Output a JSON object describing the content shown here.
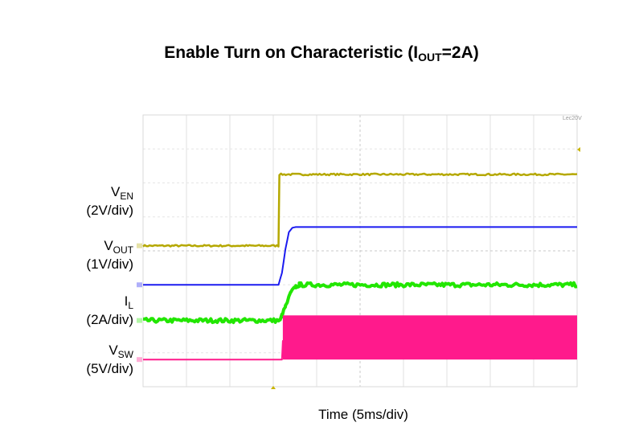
{
  "title": {
    "main": "Enable Turn on Characteristic (I",
    "sub": "OUT",
    "end": "=2A)"
  },
  "xlabel": "Time (5ms/div)",
  "scope_readout": "Lec20V",
  "chart_data": {
    "type": "line",
    "title": "Enable Turn on Characteristic (IOUT=2A)",
    "xlabel": "Time (5ms/div)",
    "xlim": [
      0,
      50
    ],
    "ylim": [
      0,
      8
    ],
    "grid": true,
    "x_divisions": 10,
    "y_divisions": 8,
    "series": [
      {
        "name": "VEN",
        "name_main": "V",
        "name_sub": "EN",
        "scale": "(2V/div)",
        "color": "#b5a800",
        "x": [
          0,
          15.6,
          15.7,
          50
        ],
        "y": [
          4.15,
          4.15,
          6.25,
          6.25
        ],
        "noise": 0.025
      },
      {
        "name": "VOUT",
        "name_main": "V",
        "name_sub": "OUT",
        "scale": "(1V/div)",
        "color": "#1b1bf0",
        "x": [
          0,
          15.6,
          16.0,
          16.4,
          16.8,
          17.2,
          17.6,
          50
        ],
        "y": [
          3.0,
          3.0,
          3.35,
          4.05,
          4.55,
          4.68,
          4.7,
          4.7
        ],
        "noise": 0.0
      },
      {
        "name": "IL",
        "name_main": "I",
        "name_sub": "L",
        "scale": "(2A/div)",
        "color": "#22e600",
        "x": [
          0,
          15.8,
          16.0,
          16.4,
          17.0,
          17.6,
          18.0,
          50
        ],
        "y": [
          1.95,
          1.95,
          2.1,
          2.35,
          2.75,
          2.95,
          3.0,
          3.0
        ],
        "noise": 0.06
      },
      {
        "name": "VSW",
        "name_main": "V",
        "name_sub": "SW",
        "scale": "(5V/div)",
        "color": "#ff1a8c",
        "x": [
          0,
          16.0,
          16.1,
          50
        ],
        "y": [
          0.8,
          0.8,
          1.35,
          1.35
        ],
        "band_low": 0.8,
        "band_high": 2.1,
        "band_start": 16.1
      }
    ]
  }
}
